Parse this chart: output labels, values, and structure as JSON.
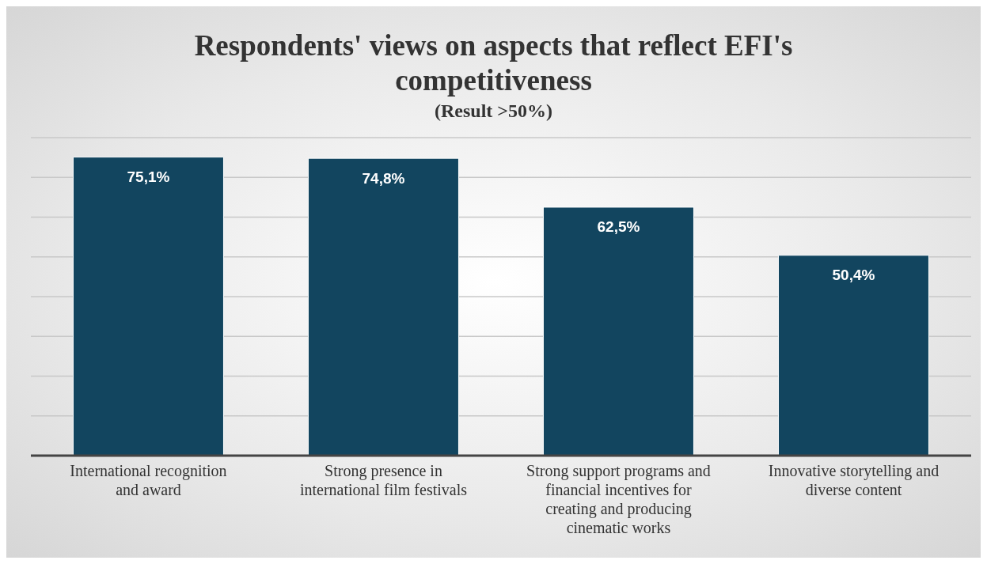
{
  "chart_data": {
    "type": "bar",
    "title": "Respondents' views on aspects that reflect EFI's competitiveness",
    "subtitle": "(Result >50%)",
    "categories": [
      "International recognition and award",
      "Strong presence in international film festivals",
      "Strong support programs and financial incentives for creating and producing cinematic works",
      "Innovative storytelling and diverse content"
    ],
    "values": [
      75.1,
      74.8,
      62.5,
      50.4
    ],
    "value_labels": [
      "75,1%",
      "74,8%",
      "62,5%",
      "50,4%"
    ],
    "color": "#12455f",
    "ylim": [
      0,
      80
    ],
    "yticks": [
      {
        "value": 0,
        "label": null
      },
      {
        "value": 10,
        "label": null
      },
      {
        "value": 20,
        "label": null
      },
      {
        "value": 30,
        "label": null
      },
      {
        "value": 40,
        "label": null
      },
      {
        "value": 50,
        "label": null
      },
      {
        "value": 60,
        "label": null
      },
      {
        "value": 70,
        "label": null
      },
      {
        "value": 80,
        "label": null
      }
    ],
    "tick_labels": "x",
    "grid": "y"
  }
}
